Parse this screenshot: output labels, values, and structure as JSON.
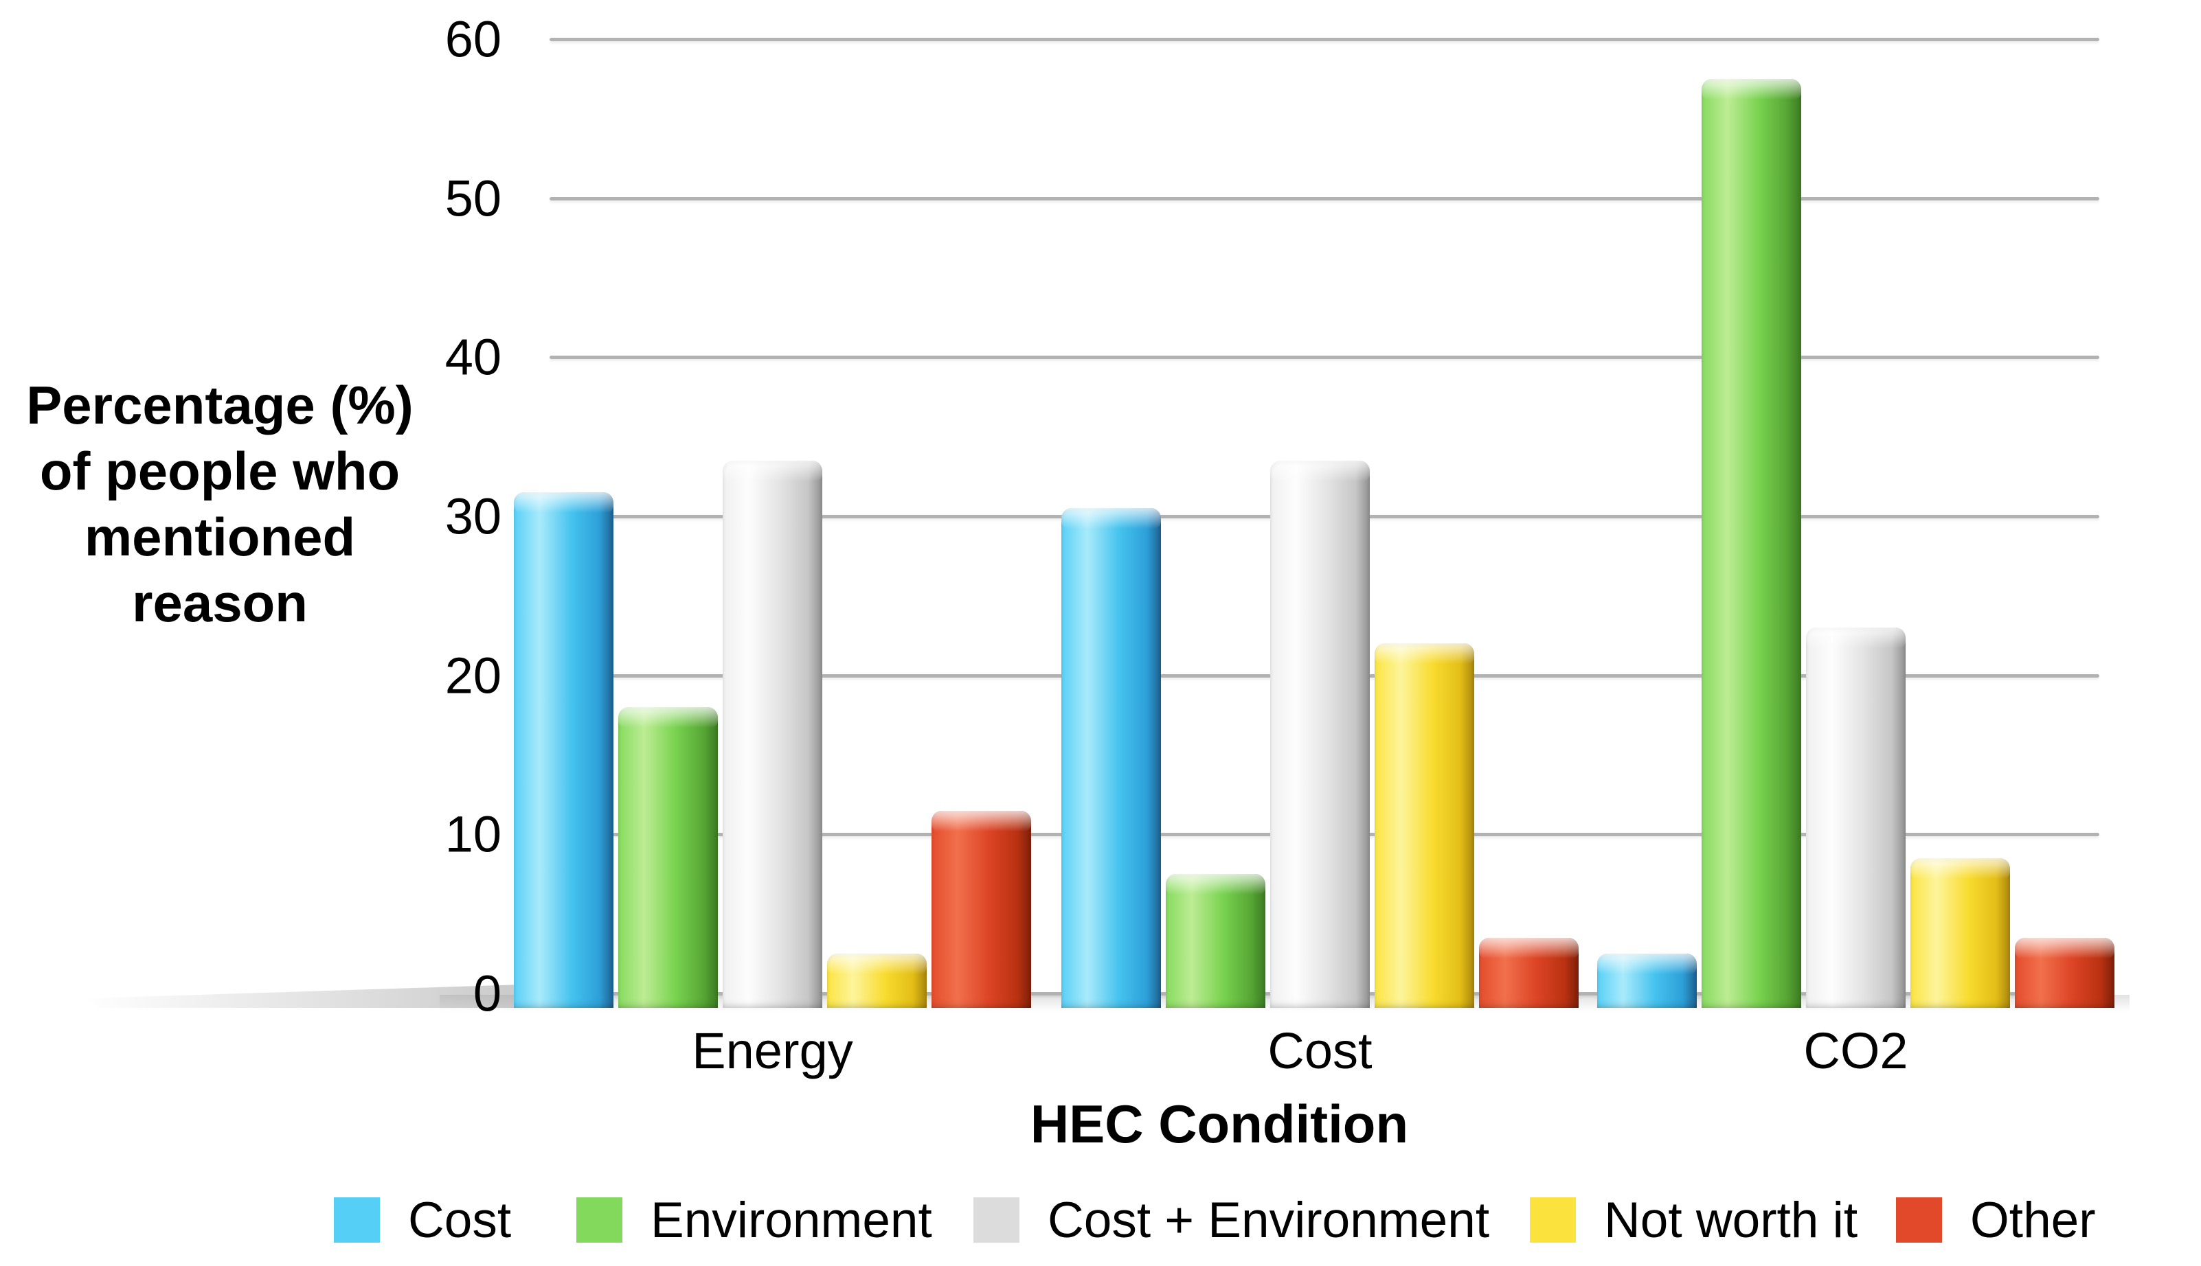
{
  "chart_data": {
    "type": "bar",
    "title": "",
    "xlabel": "HEC Condition",
    "ylabel": "Percentage (%) of people who mentioned reason",
    "ylabel_lines": [
      "Percentage (%)",
      "of people who",
      "mentioned",
      "reason"
    ],
    "categories": [
      "Energy",
      "Cost",
      "CO2"
    ],
    "series": [
      {
        "name": "Cost",
        "color": "#55CFF5",
        "values": [
          31.5,
          30.5,
          2.5
        ]
      },
      {
        "name": "Environment",
        "color": "#82D95B",
        "values": [
          18,
          7.5,
          57.5
        ]
      },
      {
        "name": "Cost + Environment",
        "color": "#DCDCDC",
        "values": [
          33.5,
          33.5,
          23
        ]
      },
      {
        "name": "Not worth it",
        "color": "#FBE23C",
        "values": [
          2.5,
          22,
          8.5
        ]
      },
      {
        "name": "Other",
        "color": "#E2492B",
        "values": [
          11.5,
          3.5,
          3.5
        ]
      }
    ],
    "ylim": [
      0,
      60
    ],
    "yticks": [
      0,
      10,
      20,
      30,
      40,
      50,
      60
    ],
    "grid": "horizontal",
    "legend_position": "bottom",
    "style": "3d-glossy",
    "gridline_color": "#b2b2b2",
    "background_color": "#ffffff",
    "text_color": "#000000"
  }
}
